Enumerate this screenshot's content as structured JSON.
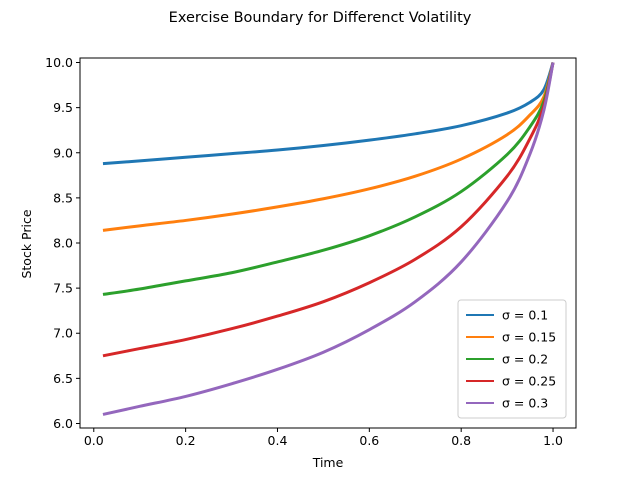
{
  "chart_data": {
    "type": "line",
    "title": "Exercise Boundary for Differenct Volatility",
    "xlabel": "Time",
    "ylabel": "Stock Price",
    "xlim": [
      -0.03,
      1.05
    ],
    "ylim": [
      5.95,
      10.05
    ],
    "xticks": [
      0.0,
      0.2,
      0.4,
      0.6,
      0.8,
      1.0
    ],
    "xtick_labels": [
      "0.0",
      "0.2",
      "0.4",
      "0.6",
      "0.8",
      "1.0"
    ],
    "yticks": [
      6.0,
      6.5,
      7.0,
      7.5,
      8.0,
      8.5,
      9.0,
      9.5,
      10.0
    ],
    "ytick_labels": [
      "6.0",
      "6.5",
      "7.0",
      "7.5",
      "8.0",
      "8.5",
      "9.0",
      "9.5",
      "10.0"
    ],
    "grid": false,
    "legend_position": "lower right",
    "x": [
      0.02,
      0.1,
      0.2,
      0.3,
      0.4,
      0.5,
      0.6,
      0.7,
      0.8,
      0.9,
      0.95,
      0.98,
      1.0
    ],
    "series": [
      {
        "name": "σ = 0.1",
        "color": "#1f77b4",
        "values": [
          8.88,
          8.91,
          8.95,
          8.99,
          9.03,
          9.08,
          9.14,
          9.21,
          9.3,
          9.44,
          9.56,
          9.7,
          10.0
        ]
      },
      {
        "name": "σ = 0.15",
        "color": "#ff7f0e",
        "values": [
          8.14,
          8.19,
          8.25,
          8.32,
          8.4,
          8.49,
          8.6,
          8.74,
          8.93,
          9.2,
          9.42,
          9.62,
          10.0
        ]
      },
      {
        "name": "σ = 0.2",
        "color": "#2ca02c",
        "values": [
          7.43,
          7.49,
          7.58,
          7.67,
          7.79,
          7.92,
          8.08,
          8.29,
          8.57,
          8.98,
          9.29,
          9.57,
          10.0
        ]
      },
      {
        "name": "σ = 0.25",
        "color": "#d62728",
        "values": [
          6.75,
          6.83,
          6.93,
          7.05,
          7.19,
          7.35,
          7.56,
          7.82,
          8.18,
          8.74,
          9.16,
          9.52,
          10.0
        ]
      },
      {
        "name": "σ = 0.3",
        "color": "#9467bd",
        "values": [
          6.1,
          6.19,
          6.3,
          6.44,
          6.6,
          6.79,
          7.04,
          7.35,
          7.79,
          8.46,
          8.99,
          9.47,
          10.0
        ]
      }
    ]
  }
}
